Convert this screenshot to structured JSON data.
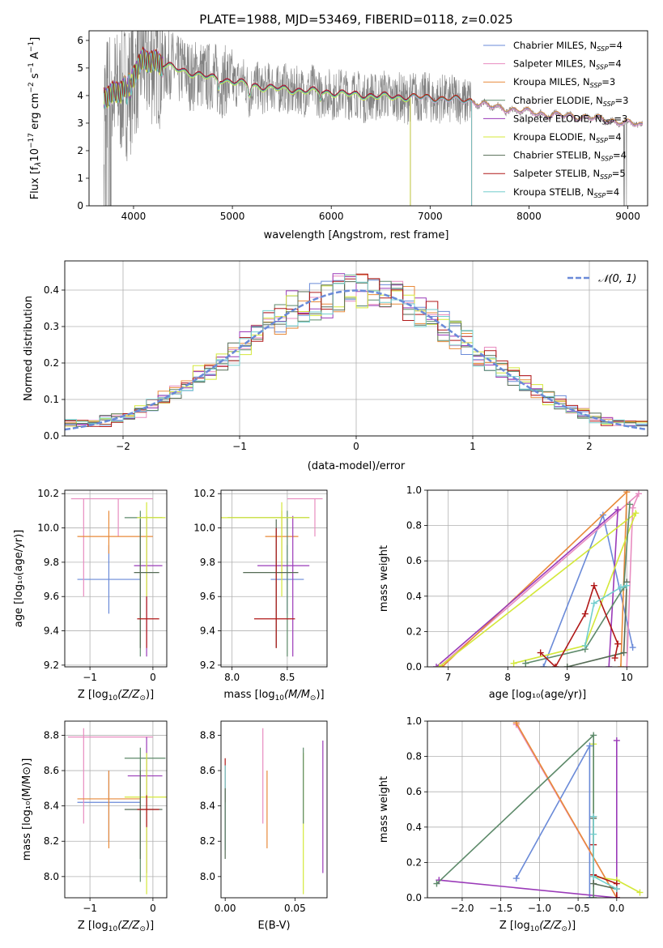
{
  "colors": [
    "#6a8ad8",
    "#e88cc0",
    "#e88a3a",
    "#5d8a6a",
    "#9a3ab8",
    "#d4e83a",
    "#556b55",
    "#b01818",
    "#72cece"
  ],
  "chart_data": [
    {
      "id": "spectrum",
      "type": "line",
      "title": "PLATE=1988, MJD=53469, FIBERID=0118, z=0.025",
      "xlabel": "wavelength [Angstrom, rest frame]",
      "ylabel": "Flux [fλ10⁻¹⁷ erg cm⁻² s⁻¹ A⁻¹]",
      "xlim": [
        3550,
        9200
      ],
      "ylim": [
        0,
        6.35
      ],
      "xticks": [
        4000,
        5000,
        6000,
        7000,
        8000,
        9000
      ],
      "yticks": [
        0,
        1,
        2,
        3,
        4,
        5,
        6
      ],
      "grid": false,
      "legend": "top-right",
      "legend_entries": [
        {
          "pre": "Chabrier MILES, N",
          "sub": "SSP",
          "post": "=4"
        },
        {
          "pre": "Salpeter MILES, N",
          "sub": "SSP",
          "post": "=4"
        },
        {
          "pre": "Kroupa MILES, N",
          "sub": "SSP",
          "post": "=3"
        },
        {
          "pre": "Chabrier ELODIE, N",
          "sub": "SSP",
          "post": "=3"
        },
        {
          "pre": "Salpeter ELODIE, N",
          "sub": "SSP",
          "post": "=3"
        },
        {
          "pre": "Kroupa ELODIE, N",
          "sub": "SSP",
          "post": "=4"
        },
        {
          "pre": "Chabrier STELIB, N",
          "sub": "SSP",
          "post": "=4"
        },
        {
          "pre": "Salpeter STELIB, N",
          "sub": "SSP",
          "post": "=5"
        },
        {
          "pre": "Kroupa STELIB, N",
          "sub": "SSP",
          "post": "=4"
        }
      ],
      "data_continuum": {
        "x": [
          3700,
          3800,
          3900,
          4000,
          4100,
          4200,
          4300,
          4500,
          4700,
          5000,
          5300,
          5600,
          6000,
          6300,
          6600,
          7000,
          7200,
          7420,
          7600,
          7800,
          8000,
          8200,
          8400,
          8600,
          8800,
          9000,
          9150
        ],
        "y": [
          3.9,
          4.1,
          4.3,
          4.7,
          5.3,
          5.3,
          5.1,
          4.9,
          4.7,
          4.5,
          4.3,
          4.2,
          4.1,
          4.0,
          3.95,
          3.9,
          3.85,
          3.8,
          3.6,
          3.5,
          3.4,
          3.3,
          3.25,
          3.2,
          3.1,
          3.0,
          2.9
        ]
      },
      "model_cutoffs": {
        "ELODIE": 6800,
        "STELIB": 7420
      }
    },
    {
      "id": "residuals",
      "type": "histogram",
      "xlabel": "(data-model)/error",
      "ylabel": "Normed distribution",
      "xlim": [
        -2.5,
        2.5
      ],
      "ylim": [
        0,
        0.48
      ],
      "xticks": [
        -2,
        -1,
        0,
        1,
        2
      ],
      "yticks": [
        0.0,
        0.1,
        0.2,
        0.3,
        0.4
      ],
      "grid": true,
      "legend": "top-right",
      "legend_label": "N(0, 1)",
      "bins": {
        "start": -2.5,
        "width": 0.1,
        "count": 50
      }
    },
    {
      "id": "age-vs-Z",
      "type": "errorbar",
      "xlabel_pre": "Z [log",
      "xlabel_sub": "10",
      "xlabel_post": "(Z/Z",
      "xlabel_sun": "⊙",
      "xlabel_end": ")]",
      "ylabel": "age  [log₁₀(age/yr)]",
      "xlim": [
        -1.4,
        0.22
      ],
      "ylim": [
        9.19,
        10.22
      ],
      "xticks": [
        -1,
        0
      ],
      "yticks": [
        9.2,
        9.4,
        9.6,
        9.8,
        10.0,
        10.2
      ],
      "grid": true,
      "points": [
        {
          "c": 0,
          "x": -0.7,
          "xe": [
            -1.2,
            -0.2
          ],
          "y": 9.7,
          "ye": [
            9.5,
            9.9
          ]
        },
        {
          "c": 1,
          "x": -0.55,
          "xe": [
            -1.3,
            0.0
          ],
          "y": 10.17,
          "ye": [
            9.95,
            10.17
          ]
        },
        {
          "c": 1,
          "x": -1.1,
          "xe": [
            -1.1,
            -1.1
          ],
          "y": 10.0,
          "ye": [
            9.6,
            10.17
          ]
        },
        {
          "c": 2,
          "x": -0.7,
          "xe": [
            -1.2,
            0.0
          ],
          "y": 9.95,
          "ye": [
            9.85,
            10.1
          ]
        },
        {
          "c": 3,
          "x": -0.2,
          "xe": [
            -0.45,
            0.15
          ],
          "y": 10.06,
          "ye": [
            9.25,
            10.1
          ]
        },
        {
          "c": 4,
          "x": -0.1,
          "xe": [
            -0.3,
            0.15
          ],
          "y": 9.78,
          "ye": [
            9.25,
            10.07
          ]
        },
        {
          "c": 5,
          "x": -0.1,
          "xe": [
            -0.25,
            0.2
          ],
          "y": 10.06,
          "ye": [
            9.6,
            10.15
          ]
        },
        {
          "c": 6,
          "x": -0.2,
          "xe": [
            -0.3,
            0.1
          ],
          "y": 9.74,
          "ye": [
            9.3,
            10.05
          ]
        },
        {
          "c": 7,
          "x": -0.1,
          "xe": [
            -0.25,
            0.1
          ],
          "y": 9.47,
          "ye": [
            9.3,
            9.6
          ]
        }
      ]
    },
    {
      "id": "age-vs-mass",
      "type": "errorbar",
      "xlabel_pre": "mass [log",
      "xlabel_sub": "10",
      "xlabel_post": "(M/M",
      "xlabel_sun": "⊙",
      "xlabel_end": ")]",
      "ylabel": "",
      "xlim": [
        7.9,
        8.86
      ],
      "ylim": [
        9.19,
        10.22
      ],
      "xticks": [
        8.0,
        8.5
      ],
      "yticks": [
        9.2,
        9.4,
        9.6,
        9.8,
        10.0,
        10.2
      ],
      "grid": true,
      "points": [
        {
          "c": 0,
          "x": 8.5,
          "xe": [
            8.35,
            8.65
          ],
          "y": 9.7,
          "ye": [
            9.5,
            9.9
          ]
        },
        {
          "c": 1,
          "x": 8.75,
          "xe": [
            8.5,
            8.82
          ],
          "y": 10.17,
          "ye": [
            9.95,
            10.17
          ]
        },
        {
          "c": 2,
          "x": 8.45,
          "xe": [
            8.3,
            8.6
          ],
          "y": 9.95,
          "ye": [
            9.7,
            10.1
          ]
        },
        {
          "c": 3,
          "x": 8.5,
          "xe": [
            7.96,
            8.7
          ],
          "y": 10.06,
          "ye": [
            9.25,
            10.1
          ]
        },
        {
          "c": 4,
          "x": 8.55,
          "xe": [
            8.23,
            8.7
          ],
          "y": 9.78,
          "ye": [
            9.25,
            10.07
          ]
        },
        {
          "c": 5,
          "x": 8.45,
          "xe": [
            7.9,
            8.7
          ],
          "y": 10.06,
          "ye": [
            9.6,
            10.15
          ]
        },
        {
          "c": 6,
          "x": 8.4,
          "xe": [
            8.1,
            8.6
          ],
          "y": 9.74,
          "ye": [
            9.3,
            10.05
          ]
        },
        {
          "c": 7,
          "x": 8.4,
          "xe": [
            8.2,
            8.57
          ],
          "y": 9.47,
          "ye": [
            9.3,
            10.0
          ]
        }
      ]
    },
    {
      "id": "weight-vs-age",
      "type": "line",
      "xlabel": "age  [log₁₀(age/yr)]",
      "ylabel": "mass weight",
      "xlim": [
        6.65,
        10.35
      ],
      "ylim": [
        0,
        1
      ],
      "xticks": [
        7,
        8,
        9,
        10
      ],
      "yticks": [
        0.0,
        0.2,
        0.4,
        0.6,
        0.8,
        1.0
      ],
      "grid": true,
      "series": [
        {
          "c": 0,
          "x": [
            10.1,
            9.6,
            8.6
          ],
          "y": [
            0.11,
            0.86,
            0.0
          ]
        },
        {
          "c": 1,
          "x": [
            6.85,
            10.2,
            10.1,
            10.0
          ],
          "y": [
            0.0,
            0.98,
            0.9,
            0.0
          ]
        },
        {
          "c": 2,
          "x": [
            6.9,
            10.0,
            9.9
          ],
          "y": [
            0.0,
            0.99,
            0.0
          ]
        },
        {
          "c": 4,
          "x": [
            6.8,
            9.85,
            9.7
          ],
          "y": [
            0.0,
            0.89,
            0.0
          ]
        },
        {
          "c": 5,
          "x": [
            6.85,
            10.15,
            9.3,
            8.1
          ],
          "y": [
            0.0,
            0.87,
            0.12,
            0.02
          ]
        },
        {
          "c": 3,
          "x": [
            10.05,
            9.95,
            9.3,
            8.3
          ],
          "y": [
            0.92,
            0.45,
            0.1,
            0.02
          ]
        },
        {
          "c": 6,
          "x": [
            9.0,
            9.95,
            10.0
          ],
          "y": [
            0.0,
            0.08,
            0.48
          ]
        },
        {
          "c": 7,
          "x": [
            8.55,
            8.8,
            9.3,
            9.45,
            9.85,
            9.8
          ],
          "y": [
            0.08,
            0.0,
            0.3,
            0.46,
            0.13,
            0.05
          ]
        },
        {
          "c": 8,
          "x": [
            9.3,
            9.45,
            9.9,
            10.0
          ],
          "y": [
            0.12,
            0.36,
            0.45,
            0.46
          ]
        }
      ]
    },
    {
      "id": "mass-vs-Z",
      "type": "errorbar",
      "xlabel_pre": "Z [log",
      "xlabel_sub": "10",
      "xlabel_post": "(Z/Z",
      "xlabel_sun": "⊙",
      "xlabel_end": ")]",
      "ylabel": "mass [log₁₀(M/M⊙)]",
      "xlim": [
        -1.4,
        0.22
      ],
      "ylim": [
        7.88,
        8.88
      ],
      "xticks": [
        -1,
        0
      ],
      "yticks": [
        8.0,
        8.2,
        8.4,
        8.6,
        8.8
      ],
      "grid": true,
      "points": [
        {
          "c": 0,
          "x": -0.7,
          "xe": [
            -1.2,
            -0.2
          ],
          "y": 8.42,
          "ye": [
            8.2,
            8.6
          ]
        },
        {
          "c": 1,
          "x": -0.55,
          "xe": [
            -1.35,
            0.0
          ],
          "y": 8.79,
          "ye": [
            8.79,
            8.79
          ]
        },
        {
          "c": 1,
          "x": -1.1,
          "xe": [
            -1.1,
            -1.1
          ],
          "y": 8.6,
          "ye": [
            8.3,
            8.84
          ]
        },
        {
          "c": 2,
          "x": -0.7,
          "xe": [
            -1.2,
            -0.2
          ],
          "y": 8.44,
          "ye": [
            8.16,
            8.6
          ]
        },
        {
          "c": 3,
          "x": -0.2,
          "xe": [
            -0.45,
            0.2
          ],
          "y": 8.67,
          "ye": [
            7.97,
            8.73
          ]
        },
        {
          "c": 4,
          "x": -0.1,
          "xe": [
            -0.4,
            0.15
          ],
          "y": 8.57,
          "ye": [
            8.02,
            8.79
          ]
        },
        {
          "c": 5,
          "x": -0.1,
          "xe": [
            -0.45,
            0.25
          ],
          "y": 8.45,
          "ye": [
            7.9,
            8.7
          ]
        },
        {
          "c": 6,
          "x": -0.2,
          "xe": [
            -0.45,
            0.15
          ],
          "y": 8.38,
          "ye": [
            8.1,
            8.6
          ]
        },
        {
          "c": 7,
          "x": -0.1,
          "xe": [
            -0.25,
            0.1
          ],
          "y": 8.38,
          "ye": [
            8.28,
            8.46
          ]
        }
      ]
    },
    {
      "id": "mass-vs-EBV",
      "type": "errorbar",
      "xlabel": "E(B-V)",
      "ylabel": "",
      "xlim": [
        -0.003,
        0.073
      ],
      "ylim": [
        7.88,
        8.88
      ],
      "xticks": [
        0.0,
        0.05
      ],
      "yticks": [
        8.0,
        8.2,
        8.4,
        8.6,
        8.8
      ],
      "grid": false,
      "points": [
        {
          "c": 7,
          "x": 0.0,
          "xe": [
            0.0,
            0.0
          ],
          "y": 8.55,
          "ye": [
            8.42,
            8.67
          ]
        },
        {
          "c": 8,
          "x": 0.0,
          "xe": [
            0.0,
            0.0
          ],
          "y": 8.4,
          "ye": [
            8.15,
            8.63
          ]
        },
        {
          "c": 6,
          "x": 0.0,
          "xe": [
            0.0,
            0.0
          ],
          "y": 8.3,
          "ye": [
            8.1,
            8.5
          ]
        },
        {
          "c": 1,
          "x": 0.027,
          "xe": [
            0.027,
            0.027
          ],
          "y": 8.6,
          "ye": [
            8.3,
            8.84
          ]
        },
        {
          "c": 2,
          "x": 0.03,
          "xe": [
            0.03,
            0.03
          ],
          "y": 8.4,
          "ye": [
            8.16,
            8.6
          ]
        },
        {
          "c": 5,
          "x": 0.056,
          "xe": [
            0.056,
            0.056
          ],
          "y": 8.3,
          "ye": [
            7.9,
            8.7
          ]
        },
        {
          "c": 3,
          "x": 0.056,
          "xe": [
            0.056,
            0.056
          ],
          "y": 8.5,
          "ye": [
            8.3,
            8.73
          ]
        },
        {
          "c": 4,
          "x": 0.07,
          "xe": [
            0.07,
            0.07
          ],
          "y": 8.4,
          "ye": [
            8.02,
            8.77
          ]
        }
      ]
    },
    {
      "id": "weight-vs-Z",
      "type": "line",
      "xlabel_pre": "Z [log",
      "xlabel_sub": "10",
      "xlabel_post": "(Z/Z",
      "xlabel_sun": "⊙",
      "xlabel_end": ")]",
      "ylabel": "mass weight",
      "xlim": [
        -2.45,
        0.4
      ],
      "ylim": [
        0,
        1
      ],
      "xticks": [
        -2.0,
        -1.5,
        -1.0,
        -0.5,
        0.0
      ],
      "yticks": [
        0.0,
        0.2,
        0.4,
        0.6,
        0.8,
        1.0
      ],
      "grid": true,
      "series": [
        {
          "c": 0,
          "x": [
            -1.3,
            -0.35,
            -0.35
          ],
          "y": [
            0.11,
            0.86,
            0.0
          ]
        },
        {
          "c": 1,
          "x": [
            -1.3,
            0.0
          ],
          "y": [
            0.98,
            0.0
          ]
        },
        {
          "c": 2,
          "x": [
            -1.3,
            0.0
          ],
          "y": [
            0.99,
            0.0
          ]
        },
        {
          "c": 4,
          "x": [
            -2.3,
            0.0,
            0.0,
            0.0
          ],
          "y": [
            0.1,
            0.0,
            0.89,
            0.0
          ]
        },
        {
          "c": 5,
          "x": [
            -0.3,
            -0.3,
            0.0,
            0.3
          ],
          "y": [
            0.87,
            0.12,
            0.1,
            0.03
          ]
        },
        {
          "c": 3,
          "x": [
            -2.33,
            -0.3,
            -0.3
          ],
          "y": [
            0.08,
            0.92,
            0.0
          ]
        },
        {
          "c": 6,
          "x": [
            -0.3,
            -0.3,
            0.0
          ],
          "y": [
            0.45,
            0.08,
            0.05
          ]
        },
        {
          "c": 7,
          "x": [
            -0.3,
            -0.3,
            -0.3,
            0.0,
            0.0
          ],
          "y": [
            0.46,
            0.3,
            0.13,
            0.08,
            0.0
          ]
        },
        {
          "c": 8,
          "x": [
            -0.3,
            -0.3,
            -0.3,
            0.0
          ],
          "y": [
            0.46,
            0.36,
            0.12,
            0.05
          ]
        }
      ]
    }
  ]
}
